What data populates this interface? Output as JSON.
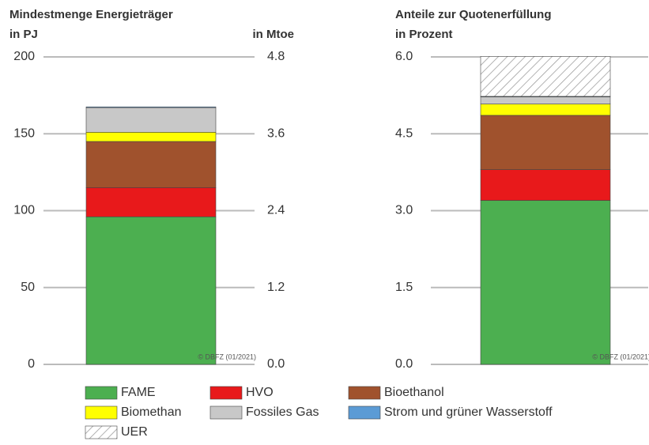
{
  "chart_data": [
    {
      "type": "stacked-bar",
      "title": "Mindestmenge Energieträger",
      "ylabel": "in PJ",
      "y2label": "in Mtoe",
      "categories": [
        null
      ],
      "ylim": [
        0,
        200
      ],
      "yticks": [
        0,
        50,
        100,
        150,
        200
      ],
      "y2lim": [
        0,
        4.8
      ],
      "y2ticks": [
        {
          "value": 0,
          "label": "0.0"
        },
        {
          "value": 1.2,
          "label": "1.2"
        },
        {
          "value": 2.4,
          "label": "2.4"
        },
        {
          "value": 3.6,
          "label": "3.6"
        },
        {
          "value": 4.8,
          "label": "4.8"
        }
      ],
      "grid": true,
      "annotation": "© DBFZ (01/2021)",
      "series": [
        {
          "color": "#4caf50",
          "values": [
            96
          ]
        },
        {
          "color": "#e8191b",
          "values": [
            19
          ]
        },
        {
          "color": "#a0522d",
          "values": [
            30
          ]
        },
        {
          "color": "#ffff00",
          "values": [
            6
          ]
        },
        {
          "color": "#c8c8c8",
          "values": [
            16
          ]
        },
        {
          "color": "#5b9bd5",
          "values": [
            0.5
          ]
        }
      ]
    },
    {
      "type": "stacked-bar",
      "title": "Anteile zur Quotenerfüllung",
      "ylabel": "in Prozent",
      "categories": [
        null
      ],
      "ylim": [
        0,
        6
      ],
      "yticks": [
        {
          "value": 0,
          "label": "0.0"
        },
        1.5,
        {
          "value": 3,
          "label": "3.0"
        },
        4.5,
        {
          "value": 6,
          "label": "6.0"
        }
      ],
      "grid": true,
      "annotation": "© DBFZ (01/2021)",
      "series": [
        {
          "name": "FAME",
          "color": "#4caf50",
          "values": [
            3.2
          ]
        },
        {
          "name": "HVO",
          "color": "#e8191b",
          "values": [
            0.6
          ]
        },
        {
          "name": "Bioethanol",
          "color": "#a0522d",
          "values": [
            1.06
          ]
        },
        {
          "name": "Biomethan",
          "color": "#ffff00",
          "values": [
            0.22
          ]
        },
        {
          "name": "Fossiles Gas",
          "color": "#c8c8c8",
          "values": [
            0.14
          ]
        },
        {
          "name": "Strom und grüner Wasserstoff",
          "color": "#5b9bd5",
          "values": [
            0.01
          ]
        },
        {
          "name": "UER",
          "color": "#ffffff",
          "hatch": true,
          "values": [
            0.78
          ]
        }
      ]
    }
  ]
}
